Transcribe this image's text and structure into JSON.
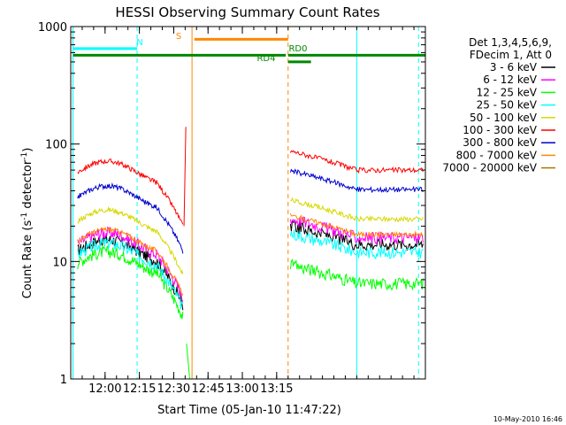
{
  "chart_data": {
    "type": "line",
    "title": "HESSI Observing Summary Count Rates",
    "xlabel": "Start Time (05-Jan-10 11:47:22)",
    "ylabel_main": "Count Rate (s",
    "ylabel_sup1": "-1",
    "ylabel_mid": " detector",
    "ylabel_sup2": "-1",
    "ylabel_end": ")",
    "yscale": "log",
    "xlim_min": [
      -2,
      153
    ],
    "ylim": [
      1,
      1000
    ],
    "x_ticks": [
      {
        "min": 13,
        "label": "12:00"
      },
      {
        "min": 28,
        "label": "12:15"
      },
      {
        "min": 43,
        "label": "12:30"
      },
      {
        "min": 58,
        "label": "12:45"
      },
      {
        "min": 73,
        "label": "13:00"
      },
      {
        "min": 88,
        "label": "13:15"
      }
    ],
    "y_ticks": [
      {
        "value": 1,
        "label": "1"
      },
      {
        "value": 10,
        "label": "10"
      },
      {
        "value": 100,
        "label": "100"
      },
      {
        "value": 1000,
        "label": "1000"
      }
    ],
    "legend": {
      "header1": "Det 1,3,4,5,6,9,",
      "header2": "FDecim 1, Att 0",
      "entries": [
        "3 - 6 keV",
        "6 - 12 keV",
        "12 - 25 keV",
        "25 - 50 keV",
        "50 - 100 keV",
        "100 - 300 keV",
        "300 - 800 keV",
        "800 - 7000 keV",
        "7000 - 20000 keV"
      ]
    },
    "series_colors": [
      "#000000",
      "#ff00ff",
      "#00ff00",
      "#00ffff",
      "#d8d800",
      "#ff0000",
      "#0000cc",
      "#ff8800",
      "#aa7700"
    ],
    "segments": [
      {
        "x0": 1,
        "x1": 47,
        "levels": [
          14,
          16,
          11,
          13,
          25,
          65,
          40,
          17,
          0
        ]
      },
      {
        "x0": 94,
        "x1": 152,
        "levels": [
          14,
          16,
          6.5,
          12,
          23,
          60,
          41,
          17,
          0
        ]
      }
    ],
    "flags": [
      {
        "label": "N",
        "y": 650,
        "x0": -1,
        "x1": 27,
        "color": "#00ffff"
      },
      {
        "label": "S",
        "y": 780,
        "x0": 52,
        "x1": 93,
        "color": "#ff8800"
      },
      {
        "label": "RD0",
        "y": 570,
        "x0": 93,
        "x1": 153,
        "color": "#008800"
      },
      {
        "label": "RD4",
        "y": 500,
        "x0": 93,
        "x1": 103,
        "color": "#008800"
      }
    ],
    "saa_bar": {
      "y": 570,
      "x0": -1,
      "x1": 92,
      "color": "#008800"
    },
    "vlines_solid": [
      {
        "min": -1,
        "color": "#00ffff"
      },
      {
        "min": 51,
        "color": "#ff8800"
      },
      {
        "min": 123,
        "color": "#00ffff"
      }
    ],
    "vlines_dashed": [
      {
        "min": 27,
        "color": "#00ffff"
      },
      {
        "min": 93,
        "color": "#ff8800"
      },
      {
        "min": 150,
        "color": "#00ffff"
      }
    ],
    "footer": "10-May-2010 16:46"
  }
}
